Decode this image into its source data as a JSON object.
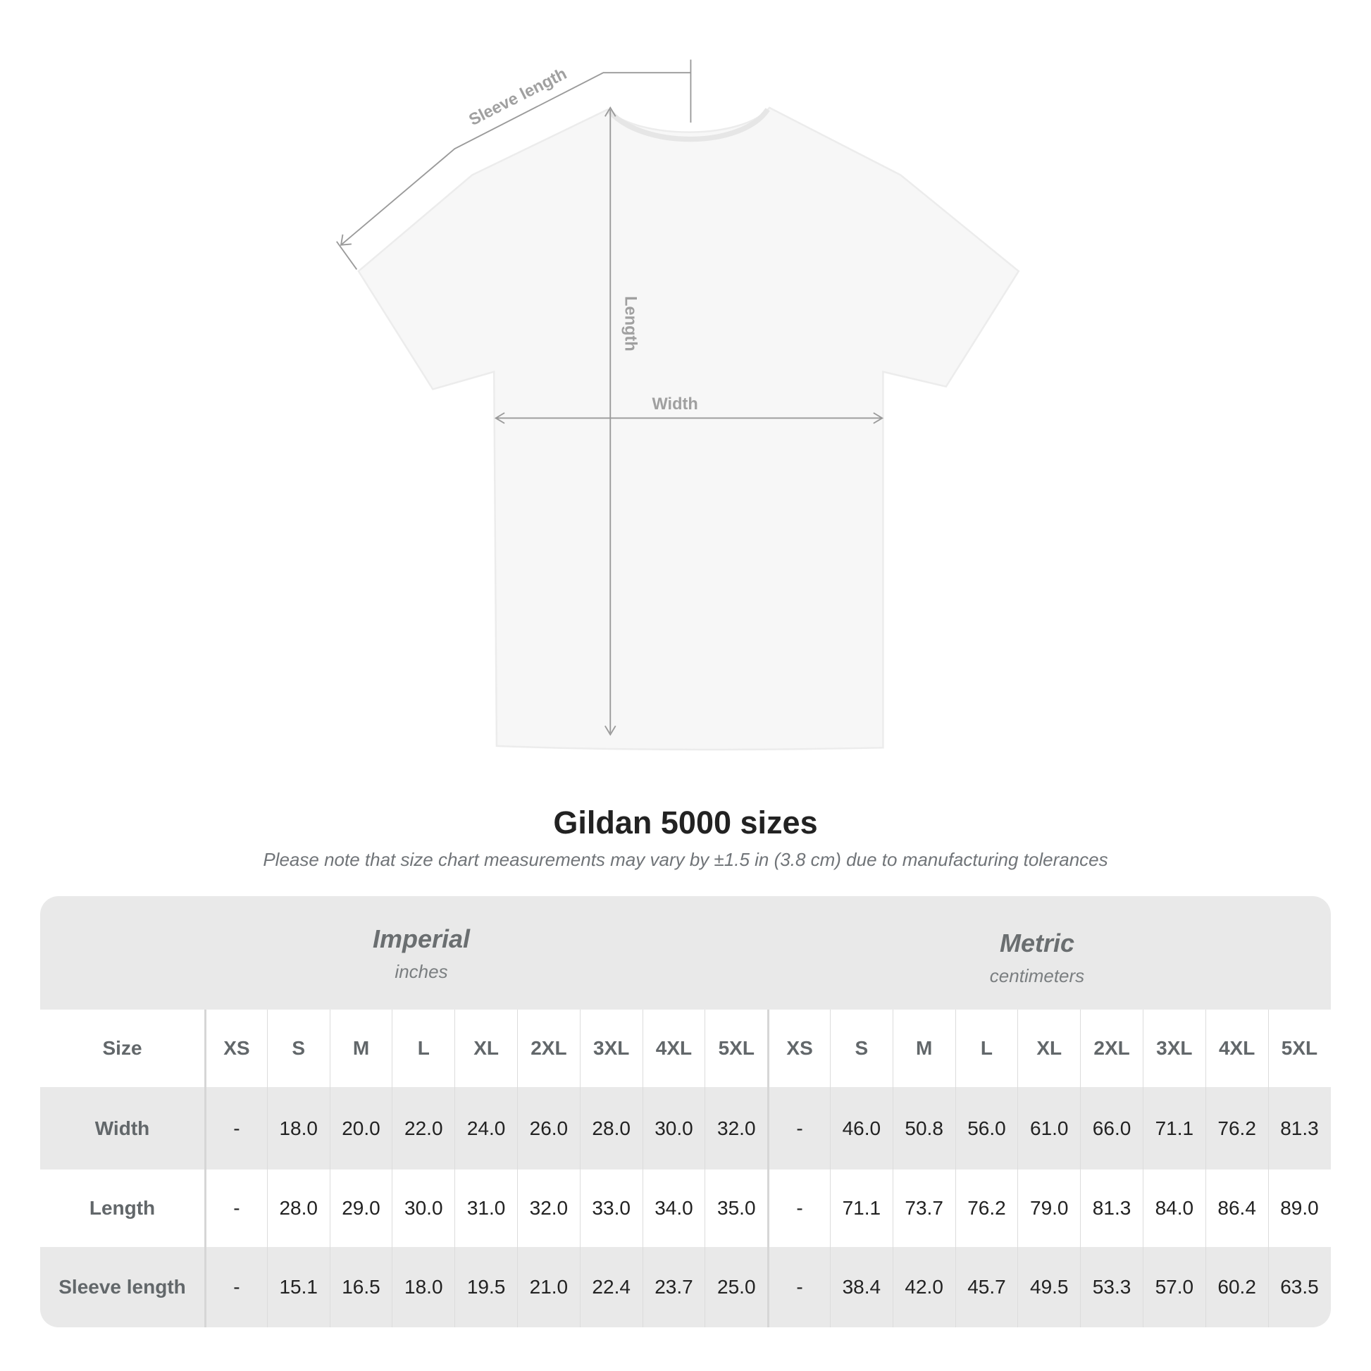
{
  "diagram": {
    "sleeve_label": "Sleeve length",
    "length_label": "Length",
    "width_label": "Width"
  },
  "title": "Gildan 5000 sizes",
  "subtitle": "Please note that size chart measurements may vary by ±1.5 in (3.8 cm) due to manufacturing tolerances",
  "table": {
    "imperial": {
      "name": "Imperial",
      "unit": "inches"
    },
    "metric": {
      "name": "Metric",
      "unit": "centimeters"
    },
    "size_label": "Size",
    "sizes": [
      "XS",
      "S",
      "M",
      "L",
      "XL",
      "2XL",
      "3XL",
      "4XL",
      "5XL"
    ],
    "rows": [
      {
        "label": "Width",
        "imperial": [
          "-",
          "18.0",
          "20.0",
          "22.0",
          "24.0",
          "26.0",
          "28.0",
          "30.0",
          "32.0"
        ],
        "metric": [
          "-",
          "46.0",
          "50.8",
          "56.0",
          "61.0",
          "66.0",
          "71.1",
          "76.2",
          "81.3"
        ]
      },
      {
        "label": "Length",
        "imperial": [
          "-",
          "28.0",
          "29.0",
          "30.0",
          "31.0",
          "32.0",
          "33.0",
          "34.0",
          "35.0"
        ],
        "metric": [
          "-",
          "71.1",
          "73.7",
          "76.2",
          "79.0",
          "81.3",
          "84.0",
          "86.4",
          "89.0"
        ]
      },
      {
        "label": "Sleeve length",
        "imperial": [
          "-",
          "15.1",
          "16.5",
          "18.0",
          "19.5",
          "21.0",
          "22.4",
          "23.7",
          "25.0"
        ],
        "metric": [
          "-",
          "38.4",
          "42.0",
          "45.7",
          "49.5",
          "53.3",
          "57.0",
          "60.2",
          "63.5"
        ]
      }
    ]
  },
  "colors": {
    "band": "#e9e9e9",
    "header_text": "#62676a",
    "line": "#9a9a9a"
  }
}
